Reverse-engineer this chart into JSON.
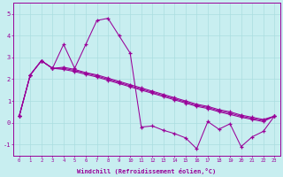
{
  "xlabel": "Windchill (Refroidissement éolien,°C)",
  "background_color": "#c8eef0",
  "grid_color": "#aadde0",
  "line_color": "#990099",
  "xlim": [
    -0.5,
    23.5
  ],
  "ylim": [
    -1.5,
    5.5
  ],
  "yticks": [
    -1,
    0,
    1,
    2,
    3,
    4,
    5
  ],
  "xticks": [
    0,
    1,
    2,
    3,
    4,
    5,
    6,
    7,
    8,
    9,
    10,
    11,
    12,
    13,
    14,
    15,
    16,
    17,
    18,
    19,
    20,
    21,
    22,
    23
  ],
  "series_data": {
    "line1": [
      0.3,
      2.2,
      2.85,
      2.5,
      3.6,
      2.5,
      3.6,
      4.7,
      4.8,
      4.0,
      3.2,
      -0.2,
      -0.15,
      -0.35,
      -0.5,
      -0.7,
      -1.2,
      0.05,
      -0.3,
      -0.05,
      -1.1,
      -0.65,
      -0.4,
      0.3
    ],
    "line2": [
      0.3,
      2.2,
      2.85,
      2.5,
      2.55,
      2.45,
      2.3,
      2.2,
      2.05,
      1.9,
      1.75,
      1.6,
      1.45,
      1.3,
      1.15,
      1.0,
      0.85,
      0.75,
      0.6,
      0.5,
      0.35,
      0.25,
      0.15,
      0.3
    ],
    "line3": [
      0.3,
      2.2,
      2.85,
      2.5,
      2.5,
      2.4,
      2.28,
      2.15,
      2.0,
      1.85,
      1.7,
      1.55,
      1.4,
      1.25,
      1.1,
      0.95,
      0.8,
      0.7,
      0.55,
      0.44,
      0.3,
      0.2,
      0.1,
      0.3
    ],
    "line4": [
      0.3,
      2.2,
      2.85,
      2.5,
      2.45,
      2.35,
      2.22,
      2.1,
      1.95,
      1.8,
      1.65,
      1.5,
      1.35,
      1.2,
      1.05,
      0.9,
      0.75,
      0.65,
      0.5,
      0.38,
      0.25,
      0.15,
      0.05,
      0.3
    ]
  }
}
